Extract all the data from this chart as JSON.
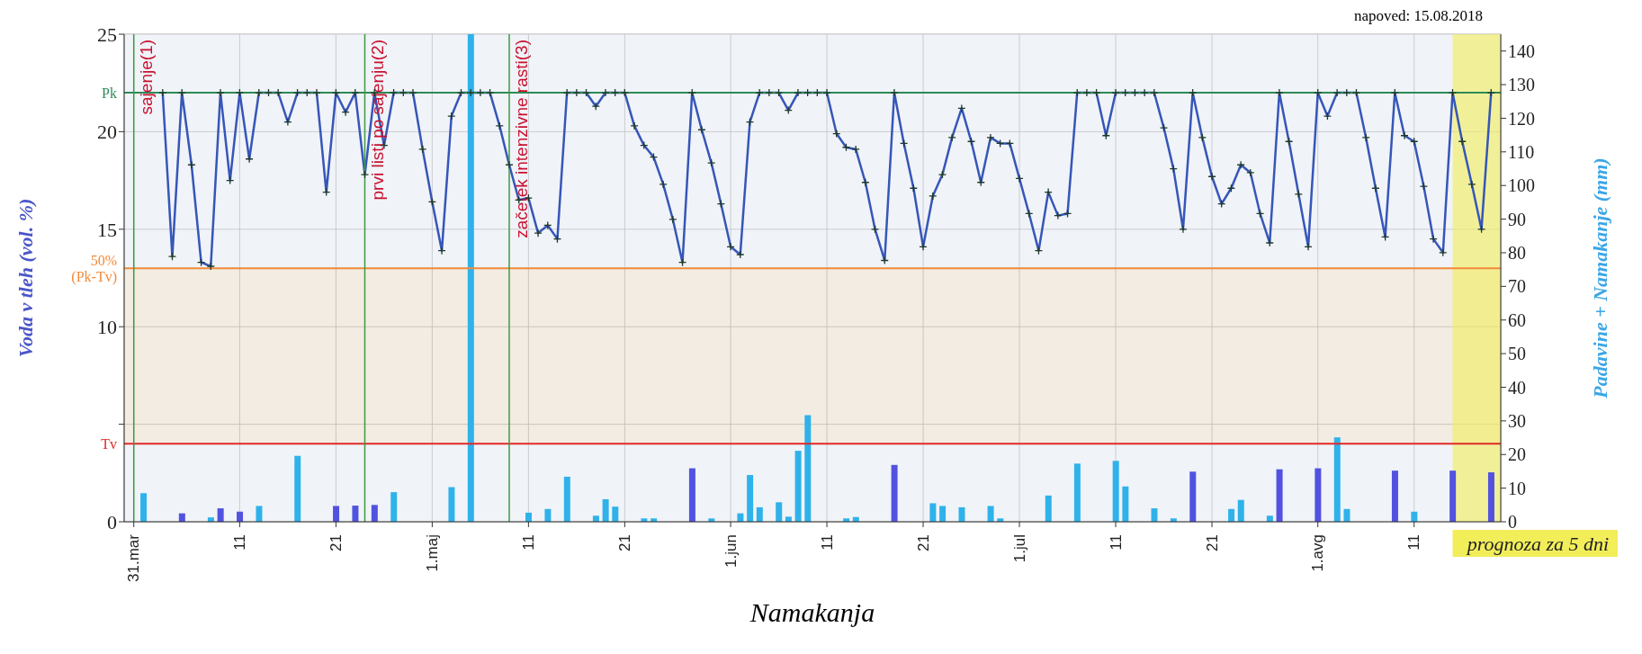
{
  "chart_data": {
    "type": "line",
    "title": "napoved: 15.08.2018",
    "xlabel": "Namakanja",
    "ylabel": "Voda v tleh (vol. %)",
    "y2label": "Padavine + Namakanje (mm)",
    "xlim": [
      "2018-03-30",
      "2018-08-20"
    ],
    "xticks": [
      {
        "value": "2018-03-31",
        "label": "31.mar"
      },
      {
        "value": "2018-04-11",
        "label": "11"
      },
      {
        "value": "2018-04-21",
        "label": "21"
      },
      {
        "value": "2018-05-01",
        "label": "1.maj"
      },
      {
        "value": "2018-05-11",
        "label": "11"
      },
      {
        "value": "2018-05-21",
        "label": "21"
      },
      {
        "value": "2018-06-01",
        "label": "1.jun"
      },
      {
        "value": "2018-06-11",
        "label": "11"
      },
      {
        "value": "2018-06-21",
        "label": "21"
      },
      {
        "value": "2018-07-01",
        "label": "1.jul"
      },
      {
        "value": "2018-07-11",
        "label": "11"
      },
      {
        "value": "2018-07-21",
        "label": "21"
      },
      {
        "value": "2018-08-01",
        "label": "1.avg"
      },
      {
        "value": "2018-08-11",
        "label": "11"
      }
    ],
    "ylim": [
      0,
      25
    ],
    "yticks": [
      0,
      {
        "value": 5,
        "label": null
      },
      10,
      15,
      20,
      25
    ],
    "y2lim": [
      0,
      145
    ],
    "y2ticks": [
      0,
      10,
      20,
      30,
      40,
      50,
      60,
      70,
      80,
      90,
      100,
      110,
      120,
      130,
      140
    ],
    "grid": true,
    "marker": "cross",
    "bands": [
      {
        "axis": "y",
        "from": 0,
        "to": 4,
        "color": "#e4eaf3"
      },
      {
        "axis": "y",
        "from": 4,
        "to": 13,
        "color": "#e9dccb"
      },
      {
        "axis": "y",
        "from": 13,
        "to": 25,
        "color": "#e4eaf3"
      },
      {
        "axis": "x",
        "from": "2018-08-15",
        "to": "2018-08-20",
        "label": "prognoza za 5 dni",
        "color": "#f2ee5a"
      }
    ],
    "ref_lines": [
      {
        "axis": "y",
        "value": 22,
        "label": "Pk",
        "color": "#2e8b57"
      },
      {
        "axis": "y",
        "value": 13,
        "label": "50% (Pk-Tv)",
        "color": "#f08a3a"
      },
      {
        "axis": "y",
        "value": 4,
        "label": "Tv",
        "color": "#e02a2a"
      },
      {
        "axis": "x",
        "value": "2018-03-31",
        "label": "sajenje(1)",
        "color": "#3f9a3f"
      },
      {
        "axis": "x",
        "value": "2018-04-24",
        "label": "prvi listi po sajenju(2)",
        "color": "#3f9a3f"
      },
      {
        "axis": "x",
        "value": "2018-05-09",
        "label": "začetek intenzivne rasti(3)",
        "color": "#3f9a3f"
      }
    ],
    "series": [
      {
        "type": "bar",
        "axis": "y2",
        "color": "#2fb2ea",
        "x": [
          "2018-04-01",
          "2018-04-08",
          "2018-04-13",
          "2018-04-17",
          "2018-04-27",
          "2018-05-03",
          "2018-05-05",
          "2018-05-11",
          "2018-05-13",
          "2018-05-15",
          "2018-05-18",
          "2018-05-19",
          "2018-05-20",
          "2018-05-23",
          "2018-05-24",
          "2018-05-30",
          "2018-06-02",
          "2018-06-03",
          "2018-06-04",
          "2018-06-06",
          "2018-06-07",
          "2018-06-08",
          "2018-06-09",
          "2018-06-13",
          "2018-06-14",
          "2018-06-22",
          "2018-06-23",
          "2018-06-25",
          "2018-06-28",
          "2018-06-29",
          "2018-07-04",
          "2018-07-07",
          "2018-07-11",
          "2018-07-12",
          "2018-07-15",
          "2018-07-17",
          "2018-07-23",
          "2018-07-24",
          "2018-07-27",
          "2018-08-03",
          "2018-08-04",
          "2018-08-11"
        ],
        "values": [
          8.5,
          1.3,
          4.7,
          19.6,
          8.8,
          10.3,
          145,
          2.7,
          3.8,
          13.4,
          1.8,
          6.7,
          4.5,
          1,
          1,
          1,
          2.5,
          13.9,
          4.3,
          5.8,
          1.5,
          21.1,
          31.7,
          1,
          1.4,
          5.5,
          4.7,
          4.3,
          4.7,
          1,
          7.8,
          17.3,
          18.1,
          10.5,
          4,
          1,
          3.8,
          6.5,
          1.8,
          25.1,
          3.8,
          3
        ]
      },
      {
        "type": "bar",
        "axis": "y2",
        "color": "#5252e0",
        "x": [
          "2018-04-05",
          "2018-04-09",
          "2018-04-11",
          "2018-04-21",
          "2018-04-23",
          "2018-04-25",
          "2018-05-28",
          "2018-06-18",
          "2018-07-19",
          "2018-07-28",
          "2018-08-01",
          "2018-08-09",
          "2018-08-15",
          "2018-08-19"
        ],
        "values": [
          2.5,
          4,
          3,
          4.7,
          4.8,
          5,
          15.9,
          16.9,
          14.9,
          15.6,
          15.9,
          15.2,
          15.2,
          14.7
        ]
      },
      {
        "color": "#3656b8",
        "x": [
          "2018-04-03",
          "2018-04-04",
          "2018-04-05",
          "2018-04-06",
          "2018-04-07",
          "2018-04-08",
          "2018-04-09",
          "2018-04-10",
          "2018-04-11",
          "2018-04-12",
          "2018-04-13",
          "2018-04-14",
          "2018-04-15",
          "2018-04-16",
          "2018-04-17",
          "2018-04-18",
          "2018-04-19",
          "2018-04-20",
          "2018-04-21",
          "2018-04-22",
          "2018-04-23",
          "2018-04-24",
          "2018-04-25",
          "2018-04-26",
          "2018-04-27",
          "2018-04-28",
          "2018-04-29",
          "2018-04-30",
          "2018-05-01",
          "2018-05-02",
          "2018-05-03",
          "2018-05-04",
          "2018-05-05",
          "2018-05-06",
          "2018-05-07",
          "2018-05-08",
          "2018-05-09",
          "2018-05-10",
          "2018-05-11",
          "2018-05-12",
          "2018-05-13",
          "2018-05-14",
          "2018-05-15",
          "2018-05-16",
          "2018-05-17",
          "2018-05-18",
          "2018-05-19",
          "2018-05-20",
          "2018-05-21",
          "2018-05-22",
          "2018-05-23",
          "2018-05-24",
          "2018-05-25",
          "2018-05-26",
          "2018-05-27",
          "2018-05-28",
          "2018-05-29",
          "2018-05-30",
          "2018-05-31",
          "2018-06-01",
          "2018-06-02",
          "2018-06-03",
          "2018-06-04",
          "2018-06-05",
          "2018-06-06",
          "2018-06-07",
          "2018-06-08",
          "2018-06-09",
          "2018-06-10",
          "2018-06-11",
          "2018-06-12",
          "2018-06-13",
          "2018-06-14",
          "2018-06-15",
          "2018-06-16",
          "2018-06-17",
          "2018-06-18",
          "2018-06-19",
          "2018-06-20",
          "2018-06-21",
          "2018-06-22",
          "2018-06-23",
          "2018-06-24",
          "2018-06-25",
          "2018-06-26",
          "2018-06-27",
          "2018-06-28",
          "2018-06-29",
          "2018-06-30",
          "2018-07-01",
          "2018-07-02",
          "2018-07-03",
          "2018-07-04",
          "2018-07-05",
          "2018-07-06",
          "2018-07-07",
          "2018-07-08",
          "2018-07-09",
          "2018-07-10",
          "2018-07-11",
          "2018-07-12",
          "2018-07-13",
          "2018-07-14",
          "2018-07-15",
          "2018-07-16",
          "2018-07-17",
          "2018-07-18",
          "2018-07-19",
          "2018-07-20",
          "2018-07-21",
          "2018-07-22",
          "2018-07-23",
          "2018-07-24",
          "2018-07-25",
          "2018-07-26",
          "2018-07-27",
          "2018-07-28",
          "2018-07-29",
          "2018-07-30",
          "2018-07-31",
          "2018-08-01",
          "2018-08-02",
          "2018-08-03",
          "2018-08-04",
          "2018-08-05",
          "2018-08-06",
          "2018-08-07",
          "2018-08-08",
          "2018-08-09",
          "2018-08-10",
          "2018-08-11",
          "2018-08-12",
          "2018-08-13",
          "2018-08-14",
          "2018-08-15",
          "2018-08-16",
          "2018-08-17",
          "2018-08-18",
          "2018-08-19"
        ],
        "values": [
          22,
          13.6,
          22,
          18.3,
          13.3,
          13.1,
          22,
          17.5,
          22,
          18.6,
          22,
          22,
          22,
          20.5,
          22,
          22,
          22,
          16.9,
          22,
          21,
          22,
          17.8,
          22,
          19.3,
          22,
          22,
          22,
          19.1,
          16.4,
          13.9,
          20.8,
          22,
          22,
          22,
          22,
          20.3,
          18.3,
          16.5,
          16.6,
          14.8,
          15.2,
          14.5,
          22,
          22,
          22,
          21.3,
          22,
          22,
          22,
          20.3,
          19.3,
          18.7,
          17.3,
          15.5,
          13.3,
          22,
          20.1,
          18.4,
          16.3,
          14.1,
          13.7,
          20.5,
          22,
          22,
          22,
          21.1,
          22,
          22,
          22,
          22,
          19.9,
          19.2,
          19.1,
          17.4,
          15,
          13.4,
          22,
          19.4,
          17.1,
          14.1,
          16.7,
          17.8,
          19.7,
          21.2,
          19.5,
          17.4,
          19.7,
          19.4,
          19.4,
          17.6,
          15.8,
          13.9,
          16.9,
          15.7,
          15.8,
          22,
          22,
          22,
          19.8,
          22,
          22,
          22,
          22,
          22,
          20.2,
          18.1,
          15,
          22,
          19.7,
          17.7,
          16.3,
          17.1,
          18.3,
          17.9,
          15.8,
          14.3,
          22,
          19.5,
          16.8,
          14.1,
          22,
          20.8,
          22,
          22,
          22,
          19.7,
          17.1,
          14.6,
          22,
          19.8,
          19.5,
          17.2,
          14.5,
          13.8,
          22,
          19.5,
          17.3,
          15,
          22
        ]
      }
    ]
  }
}
